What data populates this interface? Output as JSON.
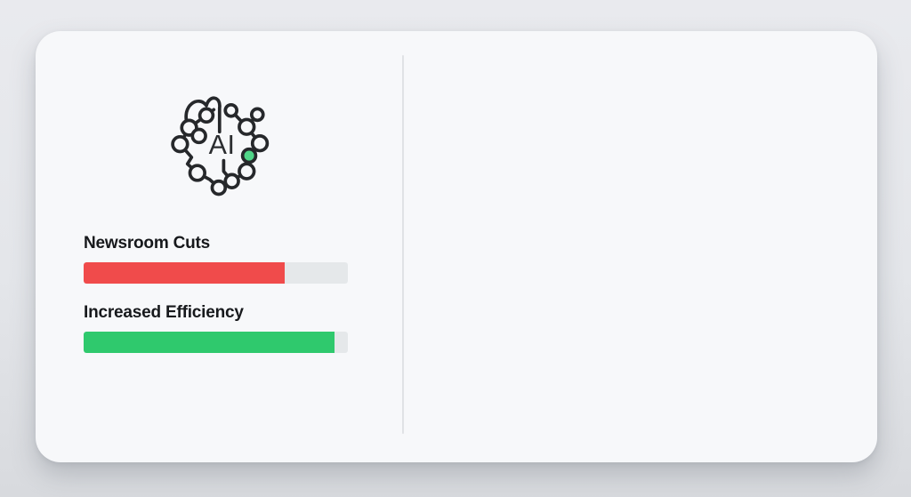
{
  "icon": {
    "label": "AI",
    "stroke_color": "#26282b",
    "accent_node_color": "#50d588"
  },
  "chart_data": {
    "type": "bar",
    "orientation": "horizontal",
    "categories": [
      "Newsroom Cuts",
      "Increased Efficiency"
    ],
    "values": [
      76,
      95
    ],
    "value_unit": "percent",
    "xlim": [
      0,
      100
    ],
    "colors": [
      "#f04b4b",
      "#2fc96d"
    ],
    "track_color": "#e5e8ea",
    "title": "",
    "xlabel": "",
    "ylabel": "",
    "legend": false,
    "grid": false
  },
  "colors": {
    "page_background_top": "#e9eaee",
    "page_background_bottom": "#d8dade",
    "card_background": "#f7f8fa",
    "divider": "#e0e2e5",
    "label_text": "#17191c"
  }
}
